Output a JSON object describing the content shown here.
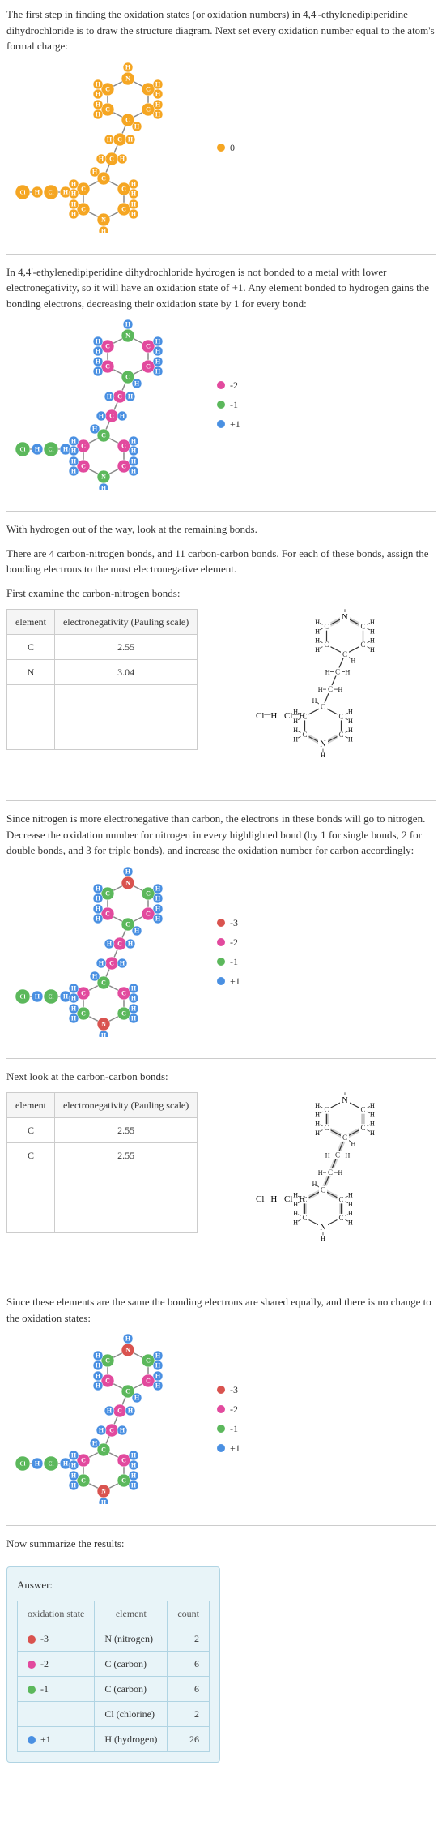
{
  "colors": {
    "orange": "#f5a623",
    "magenta": "#e24a9e",
    "green": "#5cb85c",
    "blue": "#4a90e2",
    "red": "#d9534f",
    "cyan": "#5bc0de",
    "nitrogen": "#4a7fc7",
    "gray": "#888",
    "white": "#fff",
    "bond": "#888"
  },
  "section1": {
    "text": "The first step in finding the oxidation states (or oxidation numbers) in 4,4'-ethylenedipiperidine dihydrochloride is to draw the structure diagram. Next set every oxidation number equal to the atom's formal charge:",
    "legend": [
      {
        "color": "#f5a623",
        "label": "0"
      }
    ]
  },
  "section2": {
    "text": "In 4,4'-ethylenedipiperidine dihydrochloride hydrogen is not bonded to a metal with lower electronegativity, so it will have an oxidation state of +1. Any element bonded to hydrogen gains the bonding electrons, decreasing their oxidation state by 1 for every bond:",
    "legend": [
      {
        "color": "#e24a9e",
        "label": "-2"
      },
      {
        "color": "#5cb85c",
        "label": "-1"
      },
      {
        "color": "#4a90e2",
        "label": "+1"
      }
    ]
  },
  "section3": {
    "intro": "With hydrogen out of the way, look at the remaining bonds.",
    "bonds_text": "There are 4 carbon-nitrogen bonds, and 11 carbon-carbon bonds.  For each of these bonds, assign the bonding electrons to the most electronegative element.",
    "examine": "First examine the carbon-nitrogen bonds:",
    "table_headers": [
      "element",
      "electronegativity (Pauling scale)"
    ],
    "rows": [
      {
        "el": "C",
        "val": "2.55"
      },
      {
        "el": "N",
        "val": "3.04"
      }
    ]
  },
  "section4": {
    "text": "Since nitrogen is more electronegative than carbon, the electrons in these bonds will go to nitrogen. Decrease the oxidation number for nitrogen in every highlighted bond (by 1 for single bonds, 2 for double bonds, and 3 for triple bonds), and increase the oxidation number for carbon accordingly:",
    "legend": [
      {
        "color": "#d9534f",
        "label": "-3"
      },
      {
        "color": "#e24a9e",
        "label": "-2"
      },
      {
        "color": "#5cb85c",
        "label": "-1"
      },
      {
        "color": "#4a90e2",
        "label": "+1"
      }
    ]
  },
  "section5": {
    "examine": "Next look at the carbon-carbon bonds:",
    "table_headers": [
      "element",
      "electronegativity (Pauling scale)"
    ],
    "rows": [
      {
        "el": "C",
        "val": "2.55"
      },
      {
        "el": "C",
        "val": "2.55"
      }
    ]
  },
  "section6": {
    "text": "Since these elements are the same the bonding electrons are shared equally, and there is no change to the oxidation states:",
    "legend": [
      {
        "color": "#d9534f",
        "label": "-3"
      },
      {
        "color": "#e24a9e",
        "label": "-2"
      },
      {
        "color": "#5cb85c",
        "label": "-1"
      },
      {
        "color": "#4a90e2",
        "label": "+1"
      }
    ]
  },
  "section7": {
    "summarize": "Now summarize the results:",
    "answer_label": "Answer:",
    "headers": [
      "oxidation state",
      "element",
      "count"
    ],
    "rows": [
      {
        "color": "#d9534f",
        "state": "-3",
        "element": "N (nitrogen)",
        "count": "2"
      },
      {
        "color": "#e24a9e",
        "state": "-2",
        "element": "C (carbon)",
        "count": "6"
      },
      {
        "color": "#5cb85c",
        "state": "-1",
        "element": "C (carbon)",
        "count": "6"
      },
      {
        "color": "#5cb85c",
        "state": "",
        "element": "Cl (chlorine)",
        "count": "2"
      },
      {
        "color": "#4a90e2",
        "state": "+1",
        "element": "H (hydrogen)",
        "count": "26"
      }
    ]
  },
  "skeletal": {
    "cl_label": "Cl",
    "h_label": "H",
    "n_label": "N",
    "c_label": "C"
  }
}
